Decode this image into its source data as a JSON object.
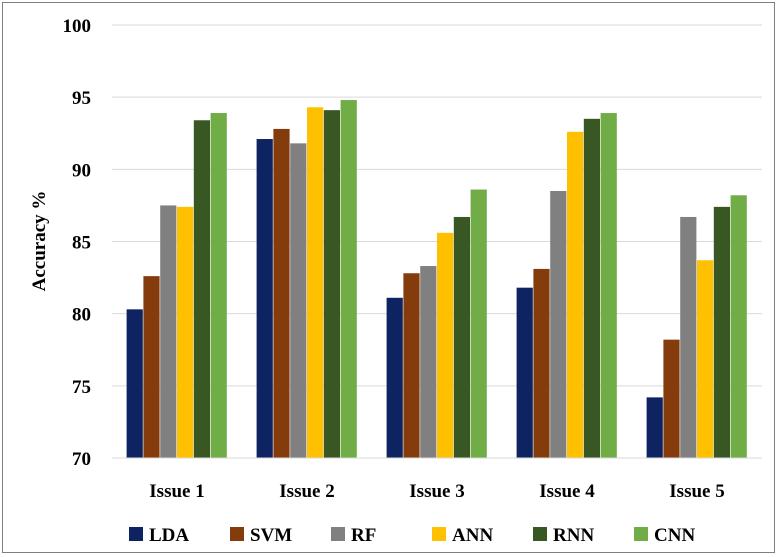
{
  "chart_data": {
    "type": "bar",
    "title": "",
    "xlabel": "",
    "ylabel": "Accuracy %",
    "ylim": [
      70,
      100
    ],
    "yticks": [
      70,
      75,
      80,
      85,
      90,
      95,
      100
    ],
    "grid": true,
    "legend_position": "bottom",
    "categories": [
      "Issue 1",
      "Issue 2",
      "Issue 3",
      "Issue 4",
      "Issue 5"
    ],
    "series": [
      {
        "name": "LDA",
        "color": "#0e2361",
        "values": [
          80.3,
          92.1,
          81.1,
          81.8,
          74.2
        ]
      },
      {
        "name": "SVM",
        "color": "#843c0c",
        "values": [
          82.6,
          92.8,
          82.8,
          83.1,
          78.2
        ]
      },
      {
        "name": "RF",
        "color": "#808080",
        "values": [
          87.5,
          91.8,
          83.3,
          88.5,
          86.7
        ]
      },
      {
        "name": "ANN",
        "color": "#ffc000",
        "values": [
          87.4,
          94.3,
          85.6,
          92.6,
          83.7
        ]
      },
      {
        "name": "RNN",
        "color": "#385723",
        "values": [
          93.4,
          94.1,
          86.7,
          93.5,
          87.4
        ]
      },
      {
        "name": "CNN",
        "color": "#70ad47",
        "values": [
          93.9,
          94.8,
          88.6,
          93.9,
          88.2
        ]
      }
    ]
  }
}
